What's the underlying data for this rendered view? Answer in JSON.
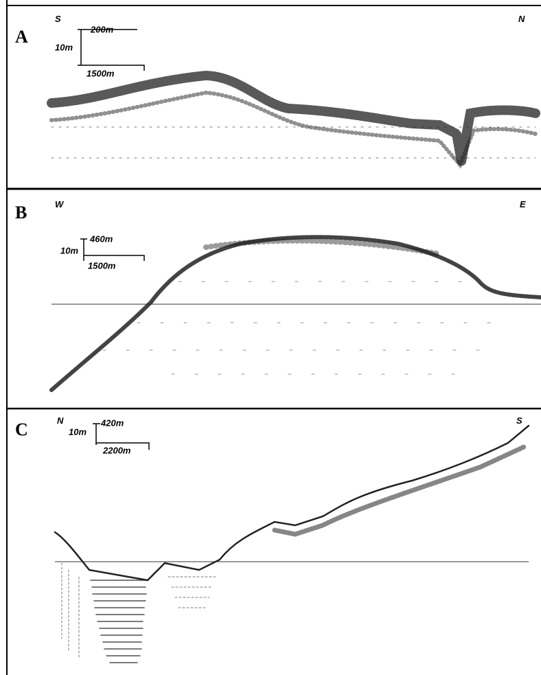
{
  "panels": [
    {
      "label": "A",
      "left": "S",
      "right": "N",
      "scale": {
        "vertical": "10m",
        "top": "200m",
        "bottom": "1500m"
      }
    },
    {
      "label": "B",
      "left": "W",
      "right": "E",
      "scale": {
        "vertical": "10m",
        "top": "460m",
        "bottom": "1500m"
      }
    },
    {
      "label": "C",
      "left": "N",
      "right": "S",
      "scale": {
        "vertical": "10m",
        "top": "420m",
        "bottom": "2200m"
      }
    }
  ]
}
